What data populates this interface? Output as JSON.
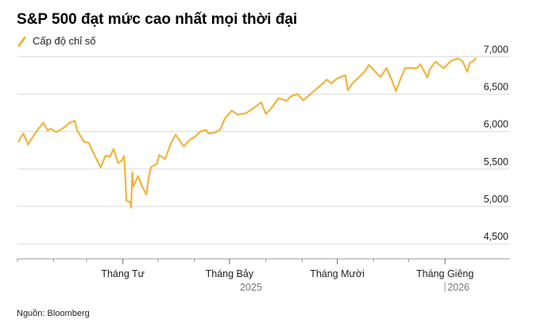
{
  "title": "S&P 500 đạt mức cao nhất mọi thời đại",
  "source": "Nguồn: Bloomberg",
  "chart_data": {
    "type": "line",
    "xlabel": "",
    "ylabel": "",
    "ylim": [
      4300,
      7100
    ],
    "y_ticks": [
      4500,
      5000,
      5500,
      6000,
      6500,
      7000
    ],
    "y_tick_labels": [
      "4,500",
      "5,000",
      "5,500",
      "6,000",
      "6,500",
      "7,000"
    ],
    "x_range": [
      "2025-01-01",
      "2026-01-28"
    ],
    "x_ticks": [
      {
        "date": "2025-04-01",
        "label": "Tháng Tư"
      },
      {
        "date": "2025-07-01",
        "label": "Tháng Bảy"
      },
      {
        "date": "2025-10-01",
        "label": "Tháng Mười"
      },
      {
        "date": "2026-01-01",
        "label": "Tháng Giêng"
      }
    ],
    "year_labels": [
      {
        "date": "2025-07-01",
        "label": "2025"
      },
      {
        "date": "2026-01-01",
        "label": "2026"
      }
    ],
    "grid": true,
    "legend": "top-left",
    "series": [
      {
        "name": "Cấp độ chỉ số",
        "color": "#f2b33d",
        "points": [
          [
            "2025-01-02",
            5868
          ],
          [
            "2025-01-06",
            5975
          ],
          [
            "2025-01-10",
            5827
          ],
          [
            "2025-01-15",
            5950
          ],
          [
            "2025-01-17",
            5996
          ],
          [
            "2025-01-23",
            6118
          ],
          [
            "2025-01-27",
            6012
          ],
          [
            "2025-01-29",
            6039
          ],
          [
            "2025-02-03",
            5994
          ],
          [
            "2025-02-07",
            6025
          ],
          [
            "2025-02-11",
            6068
          ],
          [
            "2025-02-14",
            6114
          ],
          [
            "2025-02-19",
            6144
          ],
          [
            "2025-02-21",
            6013
          ],
          [
            "2025-02-27",
            5861
          ],
          [
            "2025-03-03",
            5849
          ],
          [
            "2025-03-06",
            5738
          ],
          [
            "2025-03-10",
            5614
          ],
          [
            "2025-03-13",
            5521
          ],
          [
            "2025-03-17",
            5675
          ],
          [
            "2025-03-21",
            5667
          ],
          [
            "2025-03-24",
            5767
          ],
          [
            "2025-03-28",
            5580
          ],
          [
            "2025-03-31",
            5612
          ],
          [
            "2025-04-02",
            5671
          ],
          [
            "2025-04-03",
            5396
          ],
          [
            "2025-04-04",
            5074
          ],
          [
            "2025-04-07",
            5062
          ],
          [
            "2025-04-08",
            4982
          ],
          [
            "2025-04-09",
            5457
          ],
          [
            "2025-04-10",
            5268
          ],
          [
            "2025-04-14",
            5406
          ],
          [
            "2025-04-17",
            5282
          ],
          [
            "2025-04-21",
            5158
          ],
          [
            "2025-04-23",
            5376
          ],
          [
            "2025-04-25",
            5525
          ],
          [
            "2025-04-30",
            5569
          ],
          [
            "2025-05-02",
            5686
          ],
          [
            "2025-05-07",
            5631
          ],
          [
            "2025-05-12",
            5844
          ],
          [
            "2025-05-16",
            5958
          ],
          [
            "2025-05-21",
            5845
          ],
          [
            "2025-05-23",
            5802
          ],
          [
            "2025-05-28",
            5889
          ],
          [
            "2025-06-02",
            5936
          ],
          [
            "2025-06-06",
            6000
          ],
          [
            "2025-06-11",
            6022
          ],
          [
            "2025-06-13",
            5977
          ],
          [
            "2025-06-18",
            5981
          ],
          [
            "2025-06-23",
            6025
          ],
          [
            "2025-06-27",
            6173
          ],
          [
            "2025-07-03",
            6279
          ],
          [
            "2025-07-08",
            6226
          ],
          [
            "2025-07-15",
            6244
          ],
          [
            "2025-07-21",
            6306
          ],
          [
            "2025-07-28",
            6390
          ],
          [
            "2025-08-01",
            6238
          ],
          [
            "2025-08-05",
            6299
          ],
          [
            "2025-08-12",
            6445
          ],
          [
            "2025-08-19",
            6411
          ],
          [
            "2025-08-22",
            6467
          ],
          [
            "2025-08-28",
            6502
          ],
          [
            "2025-09-02",
            6415
          ],
          [
            "2025-09-09",
            6512
          ],
          [
            "2025-09-16",
            6606
          ],
          [
            "2025-09-22",
            6693
          ],
          [
            "2025-09-26",
            6644
          ],
          [
            "2025-10-01",
            6711
          ],
          [
            "2025-10-08",
            6753
          ],
          [
            "2025-10-10",
            6552
          ],
          [
            "2025-10-14",
            6644
          ],
          [
            "2025-10-20",
            6735
          ],
          [
            "2025-10-24",
            6791
          ],
          [
            "2025-10-28",
            6890
          ],
          [
            "2025-10-31",
            6840
          ],
          [
            "2025-11-04",
            6771
          ],
          [
            "2025-11-07",
            6728
          ],
          [
            "2025-11-12",
            6850
          ],
          [
            "2025-11-17",
            6672
          ],
          [
            "2025-11-20",
            6538
          ],
          [
            "2025-11-24",
            6705
          ],
          [
            "2025-11-28",
            6849
          ],
          [
            "2025-12-03",
            6850
          ],
          [
            "2025-12-08",
            6846
          ],
          [
            "2025-12-11",
            6901
          ],
          [
            "2025-12-17",
            6721
          ],
          [
            "2025-12-19",
            6834
          ],
          [
            "2025-12-24",
            6932
          ],
          [
            "2025-12-31",
            6845
          ],
          [
            "2026-01-06",
            6944
          ],
          [
            "2026-01-12",
            6977
          ],
          [
            "2026-01-16",
            6940
          ],
          [
            "2026-01-20",
            6797
          ],
          [
            "2026-01-22",
            6913
          ],
          [
            "2026-01-26",
            6950
          ],
          [
            "2026-01-27",
            6978
          ]
        ]
      }
    ]
  }
}
